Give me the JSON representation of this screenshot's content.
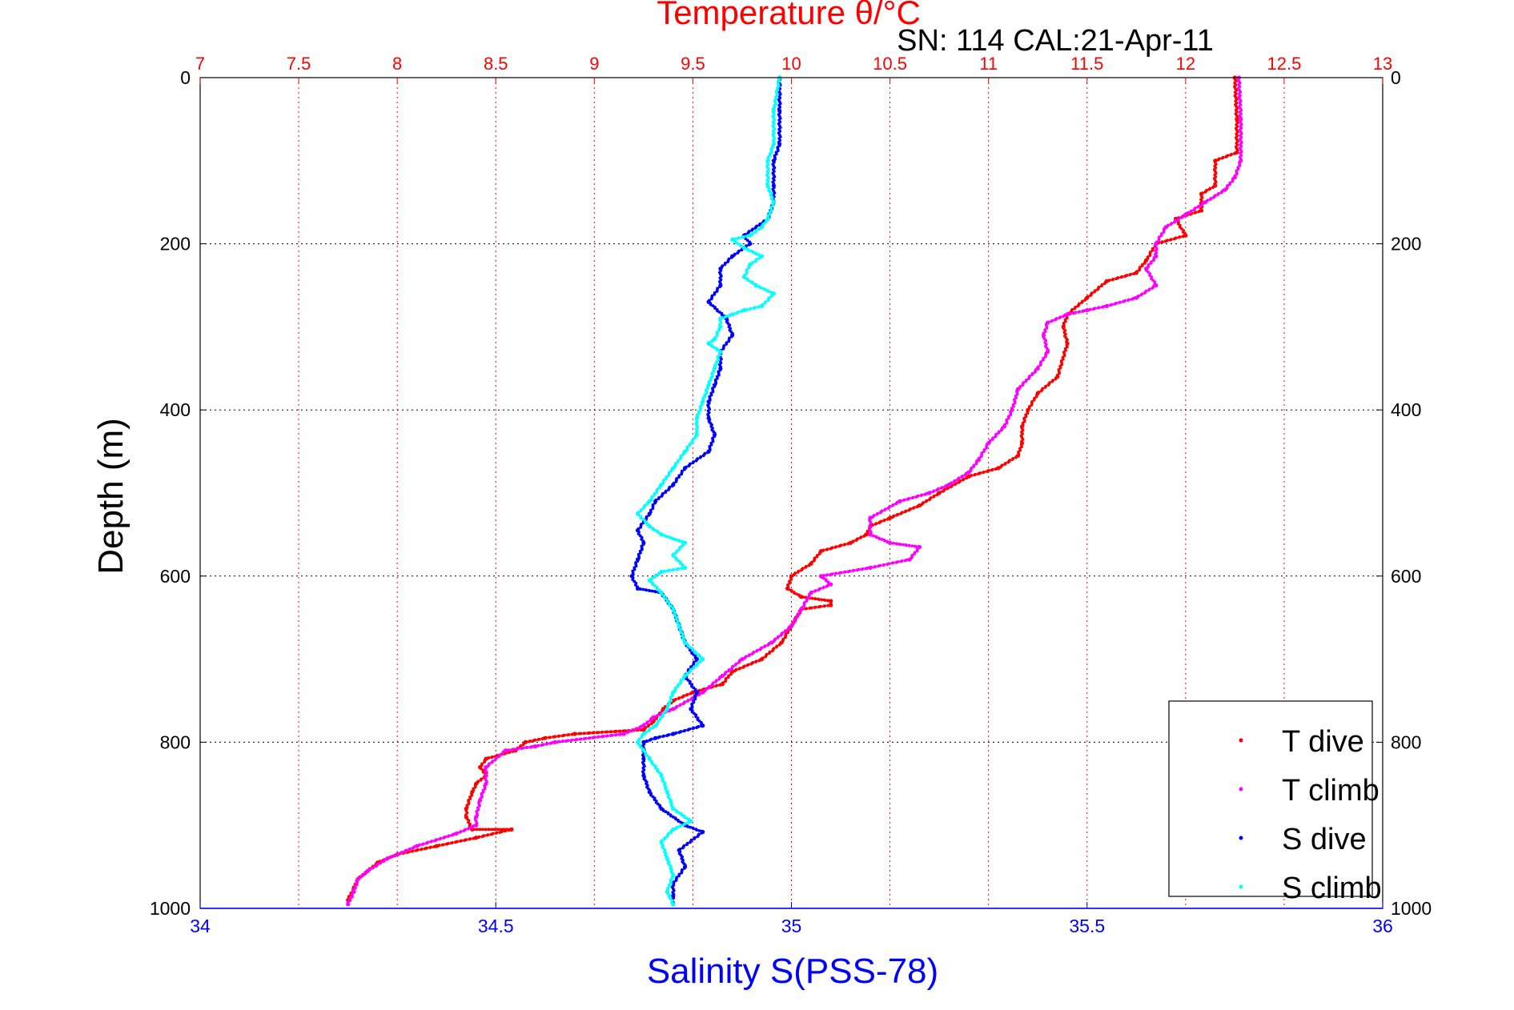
{
  "chart_data": {
    "type": "scatter",
    "title": "Temperature θ/°C",
    "subtitle": "SN: 114  CAL:21-Apr-11",
    "ylabel": "Depth (m)",
    "xlabel_bottom": "Salinity S(PSS-78)",
    "xlabel_top": "Temperature θ/°C",
    "y_axis": {
      "range": [
        0,
        1000
      ],
      "reversed": true,
      "ticks": [
        "0",
        "200",
        "400",
        "600",
        "800",
        "1000"
      ]
    },
    "x_bottom_axis": {
      "range": [
        34,
        36
      ],
      "ticks": [
        "34",
        "34.5",
        "35",
        "35.5",
        "36"
      ],
      "color": "#0000ff"
    },
    "x_top_axis": {
      "range": [
        7,
        13
      ],
      "ticks": [
        "7",
        "7.5",
        "8",
        "8.5",
        "9",
        "9.5",
        "10",
        "10.5",
        "11",
        "11.5",
        "12",
        "12.5",
        "13"
      ],
      "color": "#ff0000"
    },
    "grid": true,
    "legend_position": "bottom-right",
    "series": [
      {
        "name": "T dive",
        "axis": "top",
        "color": "#ff0000",
        "points": [
          [
            12.25,
            0
          ],
          [
            12.26,
            50
          ],
          [
            12.26,
            90
          ],
          [
            12.15,
            100
          ],
          [
            12.15,
            130
          ],
          [
            12.08,
            140
          ],
          [
            12.08,
            160
          ],
          [
            11.95,
            170
          ],
          [
            12.0,
            190
          ],
          [
            11.85,
            200
          ],
          [
            11.8,
            220
          ],
          [
            11.75,
            235
          ],
          [
            11.6,
            245
          ],
          [
            11.5,
            265
          ],
          [
            11.4,
            285
          ],
          [
            11.38,
            300
          ],
          [
            11.4,
            320
          ],
          [
            11.35,
            360
          ],
          [
            11.25,
            380
          ],
          [
            11.2,
            400
          ],
          [
            11.17,
            420
          ],
          [
            11.17,
            440
          ],
          [
            11.15,
            455
          ],
          [
            11.05,
            470
          ],
          [
            10.9,
            480
          ],
          [
            10.75,
            500
          ],
          [
            10.65,
            515
          ],
          [
            10.5,
            530
          ],
          [
            10.4,
            540
          ],
          [
            10.38,
            550
          ],
          [
            10.3,
            560
          ],
          [
            10.15,
            570
          ],
          [
            10.1,
            585
          ],
          [
            10.0,
            600
          ],
          [
            9.98,
            615
          ],
          [
            10.05,
            625
          ],
          [
            10.2,
            630
          ],
          [
            10.2,
            635
          ],
          [
            10.05,
            640
          ],
          [
            10.0,
            660
          ],
          [
            9.95,
            680
          ],
          [
            9.85,
            700
          ],
          [
            9.7,
            715
          ],
          [
            9.65,
            730
          ],
          [
            9.5,
            740
          ],
          [
            9.4,
            750
          ],
          [
            9.35,
            760
          ],
          [
            9.3,
            775
          ],
          [
            9.25,
            785
          ],
          [
            8.9,
            790
          ],
          [
            8.75,
            795
          ],
          [
            8.65,
            800
          ],
          [
            8.6,
            810
          ],
          [
            8.45,
            820
          ],
          [
            8.42,
            830
          ],
          [
            8.45,
            840
          ],
          [
            8.4,
            850
          ],
          [
            8.38,
            860
          ],
          [
            8.35,
            880
          ],
          [
            8.35,
            890
          ],
          [
            8.38,
            905
          ],
          [
            8.58,
            905
          ],
          [
            8.4,
            915
          ],
          [
            8.2,
            925
          ],
          [
            8.0,
            935
          ],
          [
            7.9,
            945
          ],
          [
            7.85,
            955
          ],
          [
            7.8,
            965
          ],
          [
            7.78,
            975
          ],
          [
            7.75,
            990
          ]
        ]
      },
      {
        "name": "T climb",
        "axis": "top",
        "color": "#ff00ff",
        "points": [
          [
            12.27,
            0
          ],
          [
            12.28,
            50
          ],
          [
            12.28,
            100
          ],
          [
            12.25,
            120
          ],
          [
            12.2,
            135
          ],
          [
            12.1,
            150
          ],
          [
            12.0,
            165
          ],
          [
            11.9,
            180
          ],
          [
            11.85,
            200
          ],
          [
            11.85,
            215
          ],
          [
            11.8,
            230
          ],
          [
            11.85,
            250
          ],
          [
            11.75,
            265
          ],
          [
            11.6,
            275
          ],
          [
            11.5,
            280
          ],
          [
            11.4,
            285
          ],
          [
            11.3,
            295
          ],
          [
            11.28,
            310
          ],
          [
            11.3,
            330
          ],
          [
            11.25,
            350
          ],
          [
            11.15,
            375
          ],
          [
            11.12,
            400
          ],
          [
            11.08,
            420
          ],
          [
            11.0,
            440
          ],
          [
            10.95,
            460
          ],
          [
            10.9,
            475
          ],
          [
            10.8,
            490
          ],
          [
            10.7,
            500
          ],
          [
            10.55,
            510
          ],
          [
            10.4,
            530
          ],
          [
            10.4,
            550
          ],
          [
            10.5,
            560
          ],
          [
            10.65,
            565
          ],
          [
            10.6,
            580
          ],
          [
            10.4,
            590
          ],
          [
            10.15,
            600
          ],
          [
            10.2,
            610
          ],
          [
            10.1,
            620
          ],
          [
            10.05,
            640
          ],
          [
            10.0,
            660
          ],
          [
            9.9,
            680
          ],
          [
            9.75,
            700
          ],
          [
            9.65,
            720
          ],
          [
            9.55,
            740
          ],
          [
            9.4,
            760
          ],
          [
            9.3,
            770
          ],
          [
            9.25,
            780
          ],
          [
            9.15,
            790
          ],
          [
            8.8,
            800
          ],
          [
            8.7,
            805
          ],
          [
            8.55,
            810
          ],
          [
            8.45,
            830
          ],
          [
            8.45,
            850
          ],
          [
            8.42,
            870
          ],
          [
            8.4,
            890
          ],
          [
            8.4,
            900
          ],
          [
            8.3,
            910
          ],
          [
            8.1,
            925
          ],
          [
            7.95,
            940
          ],
          [
            7.85,
            955
          ],
          [
            7.8,
            965
          ],
          [
            7.78,
            980
          ],
          [
            7.75,
            995
          ]
        ]
      },
      {
        "name": "S dive",
        "axis": "bottom",
        "color": "#0000ff",
        "points": [
          [
            34.98,
            0
          ],
          [
            34.98,
            40
          ],
          [
            34.98,
            80
          ],
          [
            34.97,
            100
          ],
          [
            34.97,
            130
          ],
          [
            34.97,
            150
          ],
          [
            34.96,
            170
          ],
          [
            34.92,
            190
          ],
          [
            34.93,
            200
          ],
          [
            34.9,
            215
          ],
          [
            34.88,
            230
          ],
          [
            34.88,
            250
          ],
          [
            34.86,
            270
          ],
          [
            34.89,
            290
          ],
          [
            34.9,
            310
          ],
          [
            34.88,
            330
          ],
          [
            34.88,
            350
          ],
          [
            34.87,
            370
          ],
          [
            34.86,
            390
          ],
          [
            34.86,
            410
          ],
          [
            34.87,
            430
          ],
          [
            34.86,
            450
          ],
          [
            34.82,
            470
          ],
          [
            34.8,
            490
          ],
          [
            34.77,
            510
          ],
          [
            34.76,
            525
          ],
          [
            34.74,
            545
          ],
          [
            34.75,
            560
          ],
          [
            34.74,
            580
          ],
          [
            34.73,
            600
          ],
          [
            34.74,
            615
          ],
          [
            34.78,
            620
          ],
          [
            34.8,
            640
          ],
          [
            34.81,
            660
          ],
          [
            34.82,
            680
          ],
          [
            34.84,
            700
          ],
          [
            34.82,
            720
          ],
          [
            34.84,
            740
          ],
          [
            34.83,
            760
          ],
          [
            34.85,
            780
          ],
          [
            34.8,
            790
          ],
          [
            34.77,
            795
          ],
          [
            34.75,
            800
          ],
          [
            34.75,
            820
          ],
          [
            34.75,
            840
          ],
          [
            34.76,
            860
          ],
          [
            34.78,
            880
          ],
          [
            34.82,
            900
          ],
          [
            34.85,
            908
          ],
          [
            34.81,
            930
          ],
          [
            34.82,
            950
          ],
          [
            34.8,
            970
          ],
          [
            34.8,
            985
          ],
          [
            34.8,
            995
          ]
        ]
      },
      {
        "name": "S climb",
        "axis": "bottom",
        "color": "#00ffff",
        "points": [
          [
            34.98,
            0
          ],
          [
            34.97,
            40
          ],
          [
            34.97,
            80
          ],
          [
            34.96,
            100
          ],
          [
            34.96,
            130
          ],
          [
            34.97,
            150
          ],
          [
            34.96,
            170
          ],
          [
            34.95,
            180
          ],
          [
            34.93,
            190
          ],
          [
            34.9,
            195
          ],
          [
            34.92,
            205
          ],
          [
            34.95,
            215
          ],
          [
            34.93,
            225
          ],
          [
            34.92,
            240
          ],
          [
            34.94,
            250
          ],
          [
            34.97,
            260
          ],
          [
            34.95,
            275
          ],
          [
            34.92,
            280
          ],
          [
            34.9,
            285
          ],
          [
            34.88,
            290
          ],
          [
            34.88,
            300
          ],
          [
            34.87,
            315
          ],
          [
            34.86,
            320
          ],
          [
            34.88,
            330
          ],
          [
            34.87,
            350
          ],
          [
            34.86,
            370
          ],
          [
            34.85,
            390
          ],
          [
            34.84,
            410
          ],
          [
            34.84,
            430
          ],
          [
            34.82,
            450
          ],
          [
            34.8,
            470
          ],
          [
            34.78,
            490
          ],
          [
            34.76,
            510
          ],
          [
            34.74,
            525
          ],
          [
            34.76,
            540
          ],
          [
            34.78,
            550
          ],
          [
            34.82,
            560
          ],
          [
            34.8,
            575
          ],
          [
            34.82,
            590
          ],
          [
            34.78,
            595
          ],
          [
            34.76,
            605
          ],
          [
            34.78,
            620
          ],
          [
            34.8,
            640
          ],
          [
            34.81,
            660
          ],
          [
            34.82,
            680
          ],
          [
            34.85,
            700
          ],
          [
            34.82,
            720
          ],
          [
            34.8,
            740
          ],
          [
            34.79,
            760
          ],
          [
            34.77,
            780
          ],
          [
            34.75,
            790
          ],
          [
            34.74,
            800
          ],
          [
            34.76,
            820
          ],
          [
            34.78,
            840
          ],
          [
            34.79,
            860
          ],
          [
            34.8,
            880
          ],
          [
            34.83,
            895
          ],
          [
            34.8,
            905
          ],
          [
            34.78,
            920
          ],
          [
            34.79,
            940
          ],
          [
            34.8,
            960
          ],
          [
            34.79,
            980
          ],
          [
            34.8,
            995
          ]
        ]
      }
    ]
  }
}
